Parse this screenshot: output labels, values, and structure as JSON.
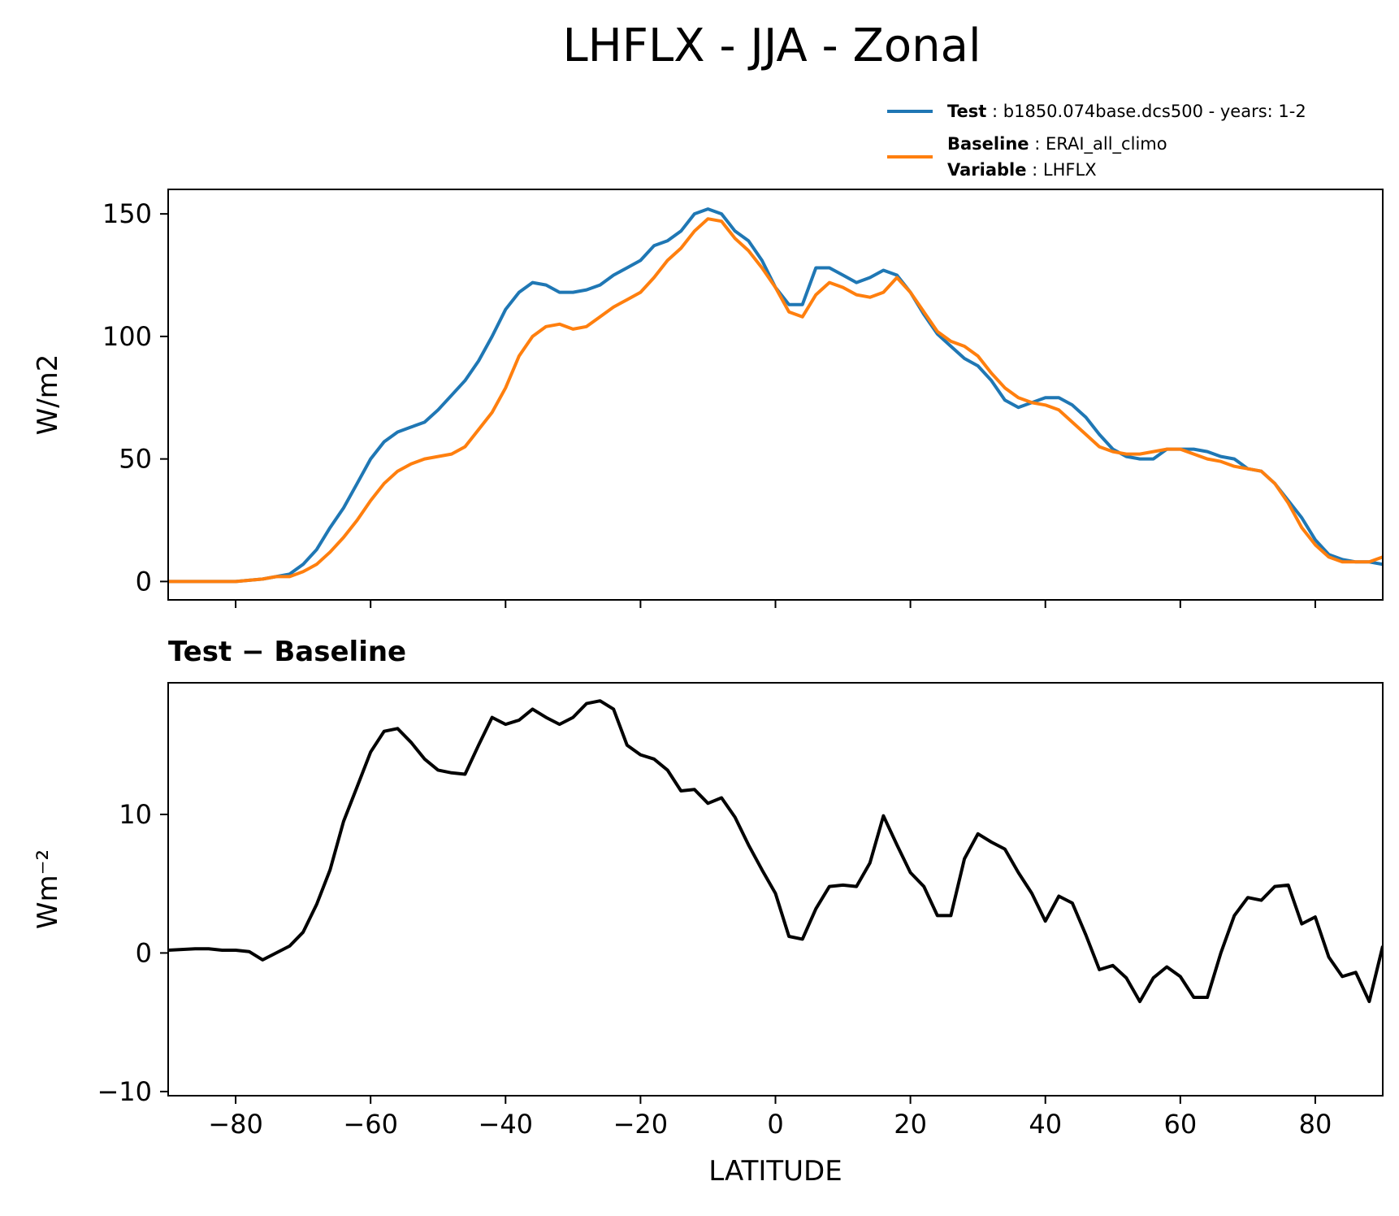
{
  "figure": {
    "title": "LHFLX - JJA - Zonal"
  },
  "legend": {
    "test_label": "Test",
    "test_value": "b1850.074base.dcs500 - years: 1-2",
    "baseline_label": "Baseline",
    "baseline_value": "ERAI_all_climo",
    "variable_label": "Variable",
    "variable_value": "LHFLX",
    "test_color": "#1f77b4",
    "baseline_color": "#ff7f0e"
  },
  "chart_data": [
    {
      "type": "line",
      "title": "",
      "xlabel": "",
      "ylabel": "W/m2",
      "xlim": [
        -90,
        90
      ],
      "ylim": [
        -7.5,
        160
      ],
      "yticks": [
        0,
        50,
        100,
        150
      ],
      "xticks": [
        -80,
        -60,
        -40,
        -20,
        0,
        20,
        40,
        60,
        80
      ],
      "grid": false,
      "legend_position": "above-right",
      "series": [
        {
          "name": "Test",
          "color": "#1f77b4",
          "points": [
            [
              -90,
              0
            ],
            [
              -86,
              0
            ],
            [
              -84,
              0
            ],
            [
              -80,
              0
            ],
            [
              -76,
              1
            ],
            [
              -74,
              2
            ],
            [
              -72,
              3
            ],
            [
              -70,
              7
            ],
            [
              -68,
              13
            ],
            [
              -66,
              22
            ],
            [
              -64,
              30
            ],
            [
              -62,
              40
            ],
            [
              -60,
              50
            ],
            [
              -58,
              57
            ],
            [
              -56,
              61
            ],
            [
              -54,
              63
            ],
            [
              -52,
              65
            ],
            [
              -50,
              70
            ],
            [
              -48,
              76
            ],
            [
              -46,
              82
            ],
            [
              -44,
              90
            ],
            [
              -42,
              100
            ],
            [
              -40,
              111
            ],
            [
              -38,
              118
            ],
            [
              -36,
              122
            ],
            [
              -34,
              121
            ],
            [
              -32,
              118
            ],
            [
              -30,
              118
            ],
            [
              -28,
              119
            ],
            [
              -26,
              121
            ],
            [
              -24,
              125
            ],
            [
              -22,
              128
            ],
            [
              -20,
              131
            ],
            [
              -18,
              137
            ],
            [
              -16,
              139
            ],
            [
              -14,
              143
            ],
            [
              -12,
              150
            ],
            [
              -10,
              152
            ],
            [
              -8,
              150
            ],
            [
              -6,
              143
            ],
            [
              -4,
              139
            ],
            [
              -2,
              131
            ],
            [
              0,
              120
            ],
            [
              2,
              113
            ],
            [
              4,
              113
            ],
            [
              6,
              128
            ],
            [
              8,
              128
            ],
            [
              10,
              125
            ],
            [
              12,
              122
            ],
            [
              14,
              124
            ],
            [
              16,
              127
            ],
            [
              18,
              125
            ],
            [
              20,
              118
            ],
            [
              22,
              109
            ],
            [
              24,
              101
            ],
            [
              26,
              96
            ],
            [
              28,
              91
            ],
            [
              30,
              88
            ],
            [
              32,
              82
            ],
            [
              34,
              74
            ],
            [
              36,
              71
            ],
            [
              38,
              73
            ],
            [
              40,
              75
            ],
            [
              42,
              75
            ],
            [
              44,
              72
            ],
            [
              46,
              67
            ],
            [
              48,
              60
            ],
            [
              50,
              54
            ],
            [
              52,
              51
            ],
            [
              54,
              50
            ],
            [
              56,
              50
            ],
            [
              58,
              54
            ],
            [
              60,
              54
            ],
            [
              62,
              54
            ],
            [
              64,
              53
            ],
            [
              66,
              51
            ],
            [
              68,
              50
            ],
            [
              70,
              46
            ],
            [
              72,
              45
            ],
            [
              74,
              40
            ],
            [
              76,
              33
            ],
            [
              78,
              26
            ],
            [
              80,
              17
            ],
            [
              82,
              11
            ],
            [
              84,
              9
            ],
            [
              86,
              8
            ],
            [
              88,
              8
            ],
            [
              90,
              7
            ]
          ]
        },
        {
          "name": "Baseline",
          "color": "#ff7f0e",
          "points": [
            [
              -90,
              0
            ],
            [
              -86,
              0
            ],
            [
              -84,
              0
            ],
            [
              -80,
              0
            ],
            [
              -76,
              1
            ],
            [
              -74,
              2
            ],
            [
              -72,
              2
            ],
            [
              -70,
              4
            ],
            [
              -68,
              7
            ],
            [
              -66,
              12
            ],
            [
              -64,
              18
            ],
            [
              -62,
              25
            ],
            [
              -60,
              33
            ],
            [
              -58,
              40
            ],
            [
              -56,
              45
            ],
            [
              -54,
              48
            ],
            [
              -52,
              50
            ],
            [
              -50,
              51
            ],
            [
              -48,
              52
            ],
            [
              -46,
              55
            ],
            [
              -44,
              62
            ],
            [
              -42,
              69
            ],
            [
              -40,
              79
            ],
            [
              -38,
              92
            ],
            [
              -36,
              100
            ],
            [
              -34,
              104
            ],
            [
              -32,
              105
            ],
            [
              -30,
              103
            ],
            [
              -28,
              104
            ],
            [
              -26,
              108
            ],
            [
              -24,
              112
            ],
            [
              -22,
              115
            ],
            [
              -20,
              118
            ],
            [
              -18,
              124
            ],
            [
              -16,
              131
            ],
            [
              -14,
              136
            ],
            [
              -12,
              143
            ],
            [
              -10,
              148
            ],
            [
              -8,
              147
            ],
            [
              -6,
              140
            ],
            [
              -4,
              135
            ],
            [
              -2,
              128
            ],
            [
              0,
              120
            ],
            [
              2,
              110
            ],
            [
              4,
              108
            ],
            [
              6,
              117
            ],
            [
              8,
              122
            ],
            [
              10,
              120
            ],
            [
              12,
              117
            ],
            [
              14,
              116
            ],
            [
              16,
              118
            ],
            [
              18,
              124
            ],
            [
              20,
              118
            ],
            [
              22,
              110
            ],
            [
              24,
              102
            ],
            [
              26,
              98
            ],
            [
              28,
              96
            ],
            [
              30,
              92
            ],
            [
              32,
              85
            ],
            [
              34,
              79
            ],
            [
              36,
              75
            ],
            [
              38,
              73
            ],
            [
              40,
              72
            ],
            [
              42,
              70
            ],
            [
              44,
              65
            ],
            [
              46,
              60
            ],
            [
              48,
              55
            ],
            [
              50,
              53
            ],
            [
              52,
              52
            ],
            [
              54,
              52
            ],
            [
              56,
              53
            ],
            [
              58,
              54
            ],
            [
              60,
              54
            ],
            [
              62,
              52
            ],
            [
              64,
              50
            ],
            [
              66,
              49
            ],
            [
              68,
              47
            ],
            [
              70,
              46
            ],
            [
              72,
              45
            ],
            [
              74,
              40
            ],
            [
              76,
              32
            ],
            [
              78,
              22
            ],
            [
              80,
              15
            ],
            [
              82,
              10
            ],
            [
              84,
              8
            ],
            [
              86,
              8
            ],
            [
              88,
              8
            ],
            [
              90,
              10
            ]
          ]
        }
      ]
    },
    {
      "type": "line",
      "title": "Test − Baseline",
      "xlabel": "LATITUDE",
      "ylabel": "Wm⁻²",
      "xlim": [
        -90,
        90
      ],
      "ylim": [
        -10.3,
        19.5
      ],
      "yticks": [
        -10,
        0,
        10
      ],
      "xticks": [
        -80,
        -60,
        -40,
        -20,
        0,
        20,
        40,
        60,
        80
      ],
      "grid": false,
      "series": [
        {
          "name": "",
          "color": "#000000",
          "points": [
            [
              -90,
              0.2
            ],
            [
              -86,
              0.3
            ],
            [
              -84,
              0.3
            ],
            [
              -82,
              0.2
            ],
            [
              -80,
              0.2
            ],
            [
              -78,
              0.1
            ],
            [
              -76,
              -0.5
            ],
            [
              -74,
              0.0
            ],
            [
              -72,
              0.5
            ],
            [
              -70,
              1.5
            ],
            [
              -68,
              3.5
            ],
            [
              -66,
              6.0
            ],
            [
              -64,
              9.5
            ],
            [
              -62,
              12.0
            ],
            [
              -60,
              14.5
            ],
            [
              -58,
              16.0
            ],
            [
              -56,
              16.2
            ],
            [
              -54,
              15.2
            ],
            [
              -52,
              14.0
            ],
            [
              -50,
              13.2
            ],
            [
              -48,
              13.0
            ],
            [
              -46,
              12.9
            ],
            [
              -44,
              15.0
            ],
            [
              -42,
              17.0
            ],
            [
              -40,
              16.5
            ],
            [
              -38,
              16.8
            ],
            [
              -36,
              17.6
            ],
            [
              -34,
              17.0
            ],
            [
              -32,
              16.5
            ],
            [
              -30,
              17.0
            ],
            [
              -28,
              18.0
            ],
            [
              -26,
              18.2
            ],
            [
              -24,
              17.6
            ],
            [
              -22,
              15.0
            ],
            [
              -20,
              14.3
            ],
            [
              -18,
              14.0
            ],
            [
              -16,
              13.2
            ],
            [
              -14,
              11.7
            ],
            [
              -12,
              11.8
            ],
            [
              -10,
              10.8
            ],
            [
              -8,
              11.2
            ],
            [
              -6,
              9.8
            ],
            [
              -4,
              7.8
            ],
            [
              -2,
              6.0
            ],
            [
              0,
              4.3
            ],
            [
              2,
              1.2
            ],
            [
              4,
              1.0
            ],
            [
              6,
              3.2
            ],
            [
              8,
              4.8
            ],
            [
              10,
              4.9
            ],
            [
              12,
              4.8
            ],
            [
              14,
              6.5
            ],
            [
              16,
              9.9
            ],
            [
              18,
              7.8
            ],
            [
              20,
              5.8
            ],
            [
              22,
              4.8
            ],
            [
              24,
              2.7
            ],
            [
              26,
              2.7
            ],
            [
              28,
              6.8
            ],
            [
              30,
              8.6
            ],
            [
              32,
              8.0
            ],
            [
              34,
              7.5
            ],
            [
              36,
              5.8
            ],
            [
              38,
              4.3
            ],
            [
              40,
              2.3
            ],
            [
              42,
              4.1
            ],
            [
              44,
              3.6
            ],
            [
              46,
              1.3
            ],
            [
              48,
              -1.2
            ],
            [
              50,
              -0.9
            ],
            [
              52,
              -1.8
            ],
            [
              54,
              -3.5
            ],
            [
              56,
              -1.8
            ],
            [
              58,
              -1.0
            ],
            [
              60,
              -1.7
            ],
            [
              62,
              -3.2
            ],
            [
              64,
              -3.2
            ],
            [
              66,
              0.0
            ],
            [
              68,
              2.7
            ],
            [
              70,
              4.0
            ],
            [
              72,
              3.8
            ],
            [
              74,
              4.8
            ],
            [
              76,
              4.9
            ],
            [
              78,
              2.1
            ],
            [
              80,
              2.6
            ],
            [
              82,
              -0.3
            ],
            [
              84,
              -1.7
            ],
            [
              86,
              -1.4
            ],
            [
              88,
              -3.5
            ],
            [
              90,
              0.5
            ]
          ]
        }
      ]
    }
  ]
}
